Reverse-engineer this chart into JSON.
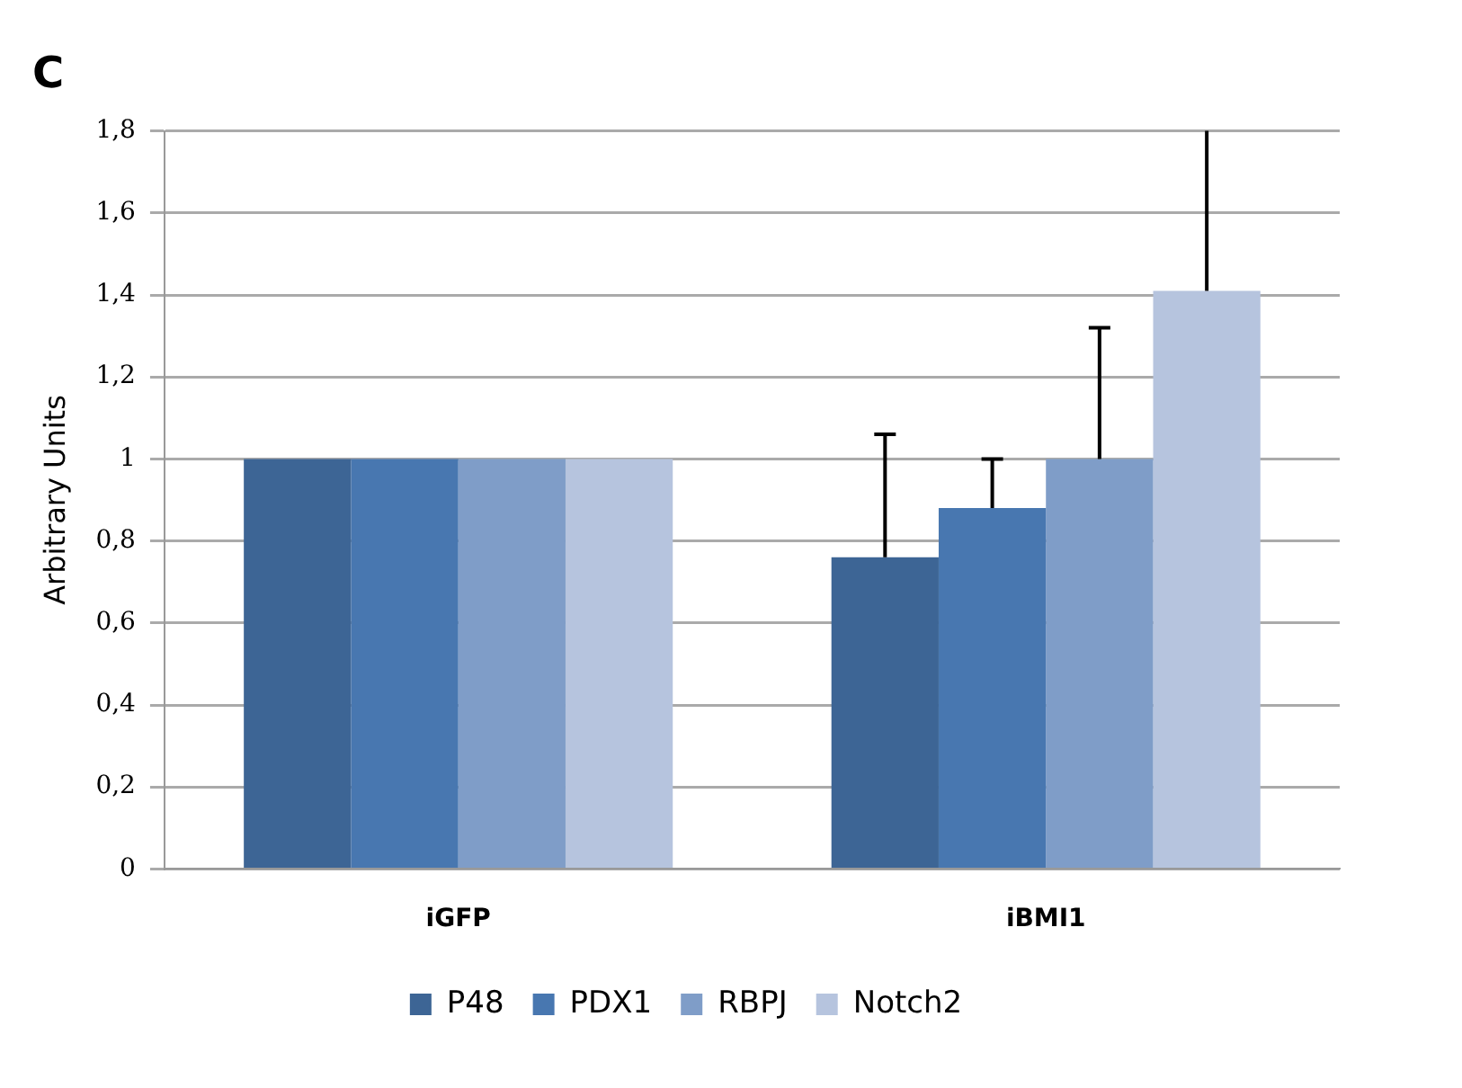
{
  "chart_data": {
    "type": "bar",
    "title": "C",
    "ylabel": "Arbitrary Units",
    "categories": [
      "iGFP",
      "iBMI1"
    ],
    "series": [
      {
        "name": "P48",
        "color": "#3d6595",
        "values": [
          1,
          0.76
        ],
        "errors": [
          null,
          [
            0.76,
            1.06
          ]
        ]
      },
      {
        "name": "PDX1",
        "color": "#4877b0",
        "values": [
          1,
          0.88
        ],
        "errors": [
          null,
          [
            0.88,
            1.0
          ]
        ]
      },
      {
        "name": "RBPJ",
        "color": "#7f9dc8",
        "values": [
          1,
          1.0
        ],
        "errors": [
          null,
          [
            1.0,
            1.32
          ]
        ]
      },
      {
        "name": "Notch2",
        "color": "#b6c4de",
        "values": [
          1,
          1.41
        ],
        "errors": [
          null,
          [
            1.41,
            1.8
          ]
        ]
      }
    ],
    "ylim": [
      0,
      1.8
    ],
    "yticks": [
      0,
      {
        "value": 0.2,
        "label": "0,2"
      },
      {
        "value": 0.4,
        "label": "0,4"
      },
      {
        "value": 0.6,
        "label": "0,6"
      },
      {
        "value": 0.8,
        "label": "0,8"
      },
      1,
      {
        "value": 1.2,
        "label": "1,2"
      },
      {
        "value": 1.4,
        "label": "1,4"
      },
      {
        "value": 1.6,
        "label": "1,6"
      },
      {
        "value": 1.8,
        "label": "1,8"
      }
    ],
    "grid": "y",
    "legend": "bottom"
  }
}
